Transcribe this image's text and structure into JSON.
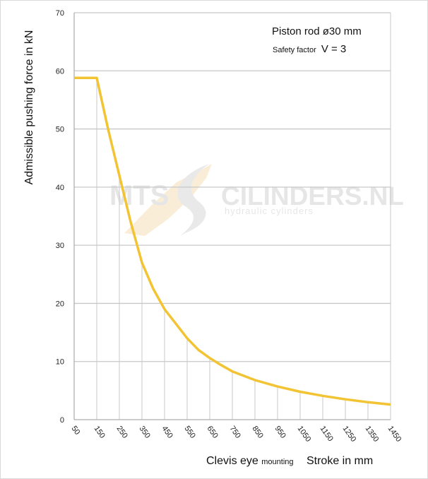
{
  "chart_data": {
    "type": "line",
    "ylabel": "Admissible pushing  force in kN",
    "xlabel_parts": [
      {
        "text": "Clevis eye ",
        "size": "large"
      },
      {
        "text": "mounting",
        "size": "small"
      },
      {
        "text": "Stroke in mm",
        "size": "large"
      }
    ],
    "annotation": {
      "line1": "Piston rod ø30 mm",
      "line2_small": "Safety factor ",
      "line2_large": "V = 3"
    },
    "watermark": {
      "brand_left": "MTS",
      "brand_right": "CILINDERS.NL",
      "tagline": "hydraulic  cylinders"
    },
    "categories": [
      "50",
      "150",
      "250",
      "350",
      "450",
      "550",
      "650",
      "750",
      "850",
      "950",
      "1050",
      "1150",
      "1250",
      "1350",
      "1450"
    ],
    "yticks": [
      0,
      10,
      20,
      30,
      40,
      50,
      60,
      70
    ],
    "ylim": [
      0,
      70
    ],
    "xlim": [
      50,
      1450
    ],
    "grid": true,
    "series": [
      {
        "color": "#f2c433",
        "points": [
          [
            50,
            58.8
          ],
          [
            150,
            58.8
          ],
          [
            200,
            50
          ],
          [
            250,
            42
          ],
          [
            300,
            34
          ],
          [
            350,
            27
          ],
          [
            400,
            22.5
          ],
          [
            450,
            19
          ],
          [
            500,
            16.5
          ],
          [
            550,
            14
          ],
          [
            600,
            12
          ],
          [
            650,
            10.6
          ],
          [
            700,
            9.4
          ],
          [
            750,
            8.3
          ],
          [
            850,
            6.8
          ],
          [
            950,
            5.7
          ],
          [
            1050,
            4.8
          ],
          [
            1150,
            4.1
          ],
          [
            1250,
            3.5
          ],
          [
            1350,
            3.0
          ],
          [
            1450,
            2.6
          ]
        ]
      }
    ]
  }
}
